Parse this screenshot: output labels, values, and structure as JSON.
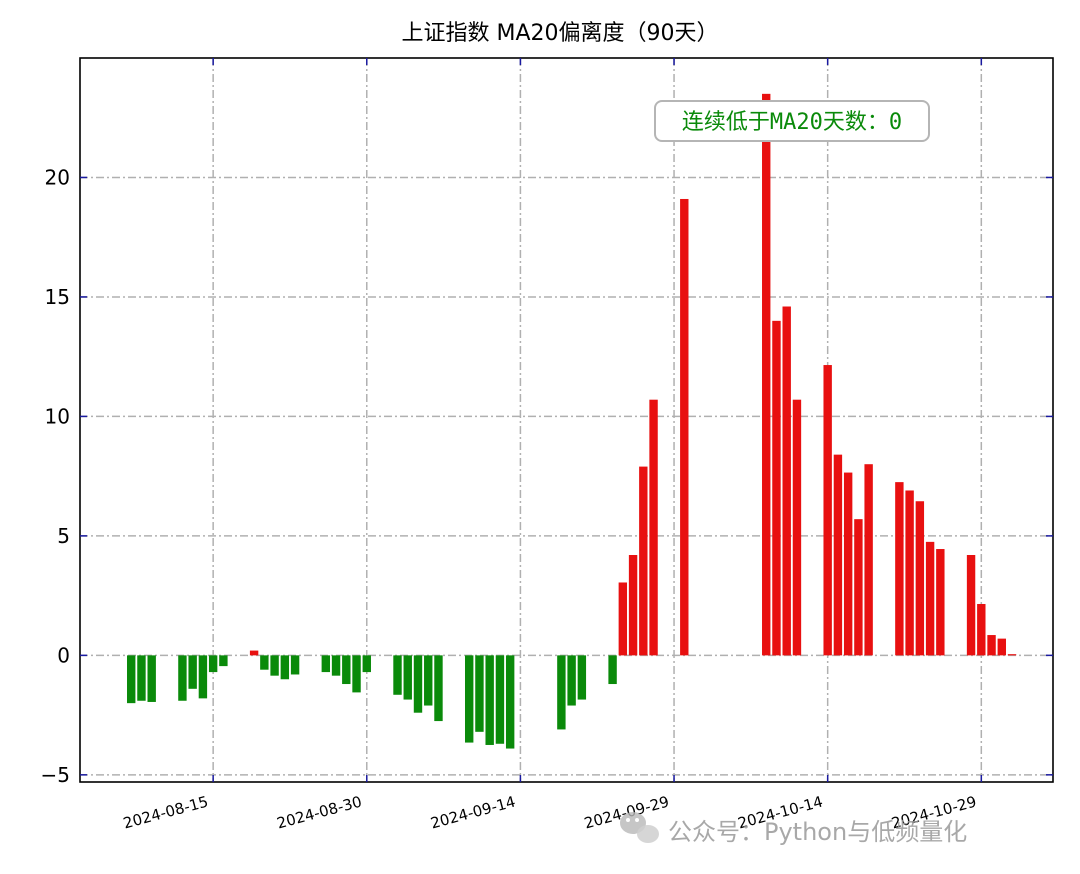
{
  "chart_data": {
    "type": "bar",
    "title": "上证指数 MA20偏离度（90天）",
    "ylim": [
      -5.3,
      25
    ],
    "yticks": [
      -5,
      0,
      5,
      10,
      15,
      20
    ],
    "ytick_labels": [
      "−5",
      "0",
      "5",
      "10",
      "15",
      "20"
    ],
    "x_range": [
      "2024-08-02",
      "2024-11-05"
    ],
    "xticks": [
      "2024-08-15",
      "2024-08-30",
      "2024-09-14",
      "2024-09-29",
      "2024-10-14",
      "2024-10-29"
    ],
    "grid": true,
    "positive_color": "#e81010",
    "negative_color": "#0a8a0a",
    "series": [
      {
        "dates": [
          "2024-08-07",
          "2024-08-08",
          "2024-08-09",
          "2024-08-12",
          "2024-08-13",
          "2024-08-14",
          "2024-08-15",
          "2024-08-16",
          "2024-08-19",
          "2024-08-20",
          "2024-08-21",
          "2024-08-22",
          "2024-08-23",
          "2024-08-26",
          "2024-08-27",
          "2024-08-28",
          "2024-08-29",
          "2024-08-30",
          "2024-09-02",
          "2024-09-03",
          "2024-09-04",
          "2024-09-05",
          "2024-09-06",
          "2024-09-09",
          "2024-09-10",
          "2024-09-11",
          "2024-09-12",
          "2024-09-13",
          "2024-09-18",
          "2024-09-19",
          "2024-09-20",
          "2024-09-23",
          "2024-09-24",
          "2024-09-25",
          "2024-09-26",
          "2024-09-27",
          "2024-09-30",
          "2024-10-08",
          "2024-10-09",
          "2024-10-10",
          "2024-10-11",
          "2024-10-14",
          "2024-10-15",
          "2024-10-16",
          "2024-10-17",
          "2024-10-18",
          "2024-10-21",
          "2024-10-22",
          "2024-10-23",
          "2024-10-24",
          "2024-10-25",
          "2024-10-28",
          "2024-10-29",
          "2024-10-30",
          "2024-10-31",
          "2024-11-01"
        ],
        "values": [
          -2.0,
          -1.9,
          -1.95,
          -1.9,
          -1.4,
          -1.8,
          -0.7,
          -0.45,
          0.2,
          -0.6,
          -0.85,
          -1.0,
          -0.8,
          -0.7,
          -0.85,
          -1.2,
          -1.55,
          -0.7,
          -1.65,
          -1.85,
          -2.4,
          -2.1,
          -2.75,
          -3.65,
          -3.2,
          -3.75,
          -3.7,
          -3.9,
          -3.1,
          -2.1,
          -1.85,
          -1.2,
          3.05,
          4.2,
          7.9,
          10.7,
          19.1,
          23.5,
          14.0,
          14.6,
          10.7,
          12.15,
          8.4,
          7.65,
          5.7,
          8.0,
          7.25,
          6.9,
          6.45,
          4.75,
          4.45,
          4.2,
          2.15,
          0.85,
          0.7,
          0.05
        ]
      }
    ],
    "annotation": "连续低于MA20天数：0"
  },
  "watermark": {
    "text": "公众号：Python与低频量化",
    "icon": "wechat-icon"
  }
}
